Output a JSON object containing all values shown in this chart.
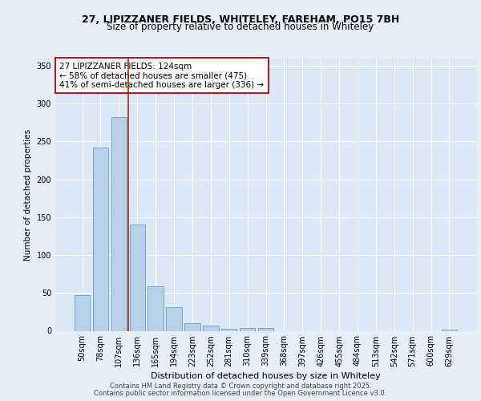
{
  "title_line1": "27, LIPIZZANER FIELDS, WHITELEY, FAREHAM, PO15 7BH",
  "title_line2": "Size of property relative to detached houses in Whiteley",
  "xlabel": "Distribution of detached houses by size in Whiteley",
  "ylabel": "Number of detached properties",
  "categories": [
    "50sqm",
    "78sqm",
    "107sqm",
    "136sqm",
    "165sqm",
    "194sqm",
    "223sqm",
    "252sqm",
    "281sqm",
    "310sqm",
    "339sqm",
    "368sqm",
    "397sqm",
    "426sqm",
    "455sqm",
    "484sqm",
    "513sqm",
    "542sqm",
    "571sqm",
    "600sqm",
    "629sqm"
  ],
  "values": [
    47,
    242,
    282,
    140,
    59,
    31,
    10,
    7,
    3,
    4,
    4,
    0,
    0,
    0,
    0,
    0,
    0,
    0,
    0,
    0,
    2
  ],
  "bar_color": "#b8d0e8",
  "bar_edge_color": "#6a9fc0",
  "vline_color": "#aa2222",
  "annotation_text": "27 LIPIZZANER FIELDS: 124sqm\n← 58% of detached houses are smaller (475)\n41% of semi-detached houses are larger (336) →",
  "annotation_box_color": "#aa2222",
  "annotation_fontsize": 7.5,
  "ylim": [
    0,
    360
  ],
  "yticks": [
    0,
    50,
    100,
    150,
    200,
    250,
    300,
    350
  ],
  "background_color": "#dce8f5",
  "grid_color": "#ffffff",
  "fig_background": "#e8eef8",
  "footer_line1": "Contains HM Land Registry data © Crown copyright and database right 2025.",
  "footer_line2": "Contains public sector information licensed under the Open Government Licence v3.0."
}
